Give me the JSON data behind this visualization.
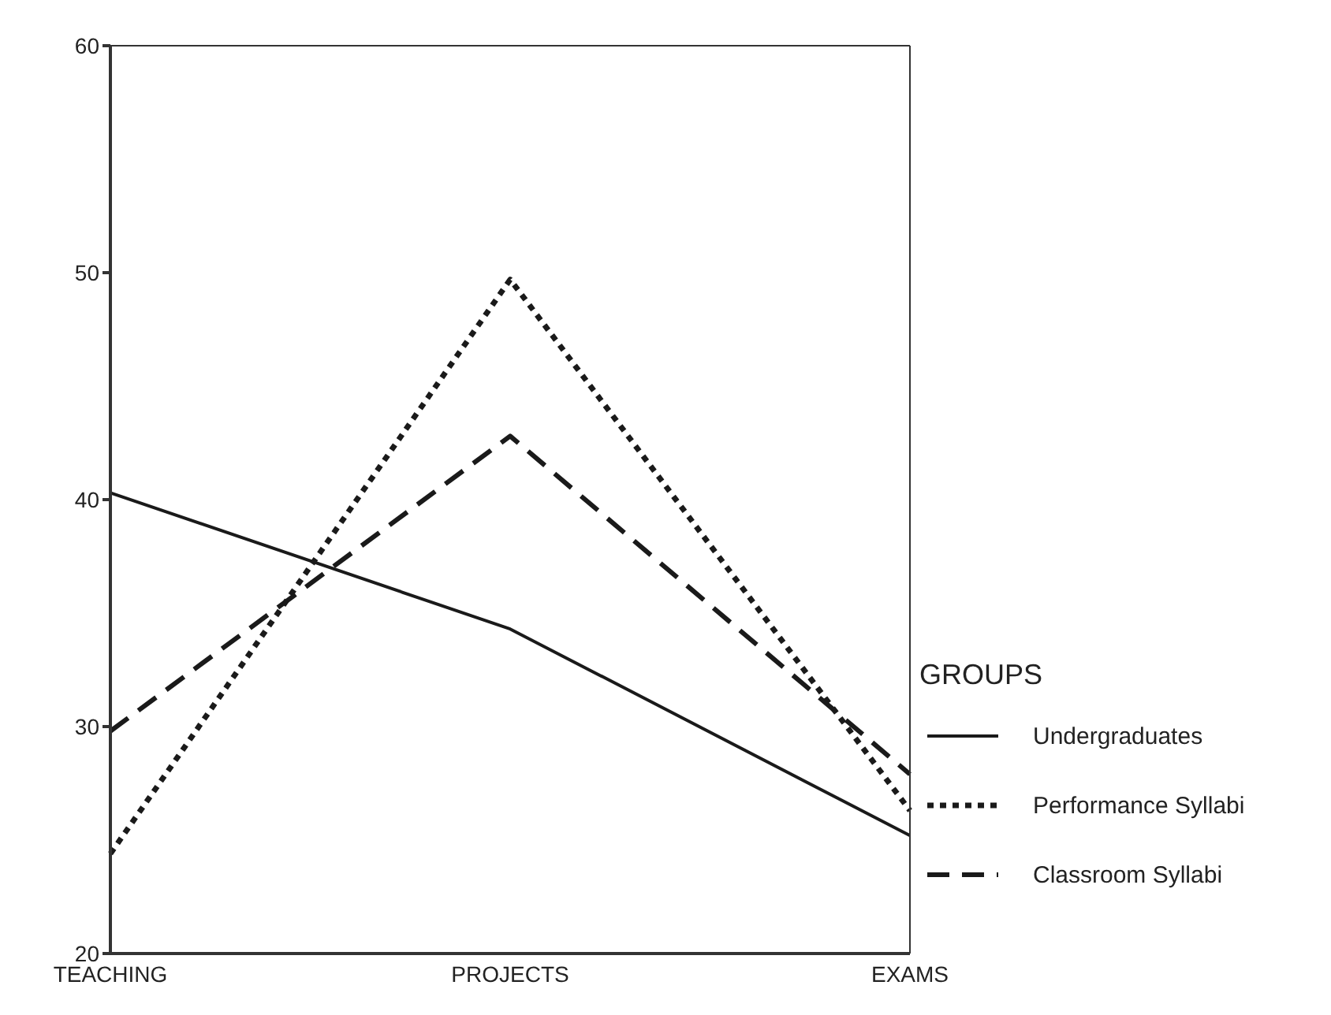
{
  "chart_data": {
    "type": "line",
    "categories": [
      "TEACHING",
      "PROJECTS",
      "EXAMS"
    ],
    "series": [
      {
        "name": "Undergraduates",
        "color": "#1a1a1a",
        "line_style": "solid",
        "values": [
          40.3,
          34.3,
          25.2
        ]
      },
      {
        "name": "Performance Syllabi",
        "color": "#1a1a1a",
        "line_style": "dotted",
        "values": [
          24.4,
          49.7,
          26.3
        ]
      },
      {
        "name": "Classroom Syllabi",
        "color": "#1a1a1a",
        "line_style": "dashed",
        "values": [
          29.8,
          42.8,
          27.9
        ]
      }
    ],
    "ylim": [
      20,
      60
    ],
    "yticks": [
      20,
      30,
      40,
      50,
      60
    ],
    "grid": false,
    "legend": "right",
    "legend_title": "GROUPS",
    "marker": "none"
  }
}
